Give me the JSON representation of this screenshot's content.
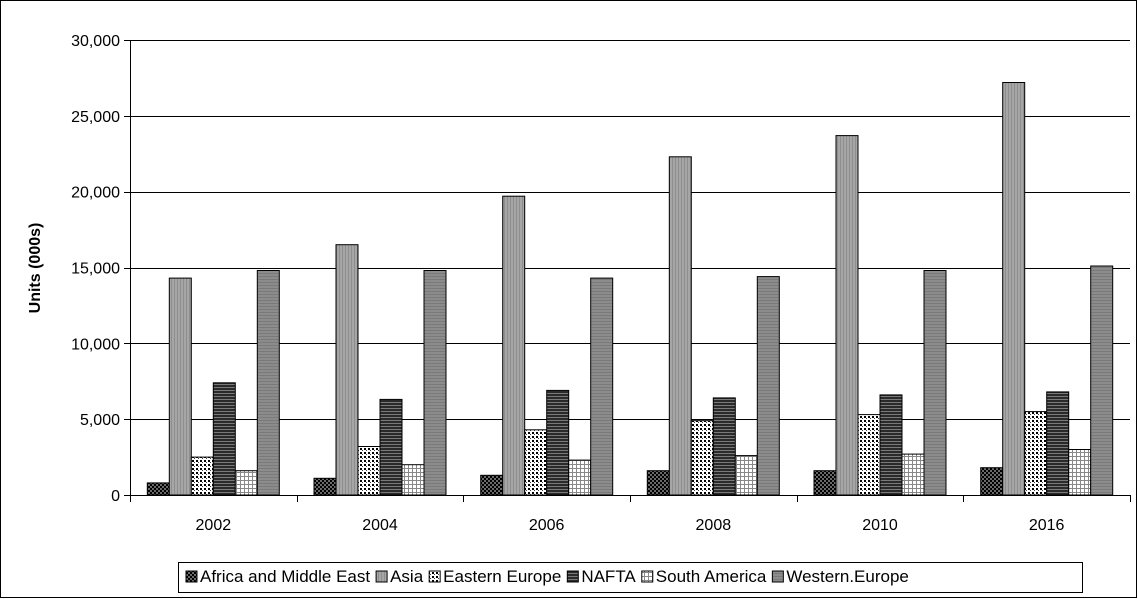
{
  "chart_data": {
    "type": "bar",
    "title": "",
    "xlabel": "",
    "ylabel": "Units (000s)",
    "ylim": [
      0,
      30000
    ],
    "yticks": [
      0,
      5000,
      10000,
      15000,
      20000,
      25000,
      30000
    ],
    "ytick_labels": [
      "0",
      "5,000",
      "10,000",
      "15,000",
      "20,000",
      "25,000",
      "30,000"
    ],
    "categories": [
      "2002",
      "2004",
      "2006",
      "2008",
      "2010",
      "2016"
    ],
    "grid": "horizontal",
    "legend_position": "bottom",
    "series": [
      {
        "name": "Africa and Middle East",
        "values": [
          800,
          1100,
          1300,
          1600,
          1600,
          1800
        ]
      },
      {
        "name": "Asia",
        "values": [
          14300,
          16500,
          19700,
          22300,
          23700,
          27200
        ]
      },
      {
        "name": "Eastern Europe",
        "values": [
          2500,
          3200,
          4300,
          4900,
          5300,
          5500
        ]
      },
      {
        "name": "NAFTA",
        "values": [
          7400,
          6300,
          6900,
          6400,
          6600,
          6800
        ]
      },
      {
        "name": "South America",
        "values": [
          1600,
          2000,
          2300,
          2600,
          2700,
          3000
        ]
      },
      {
        "name": "Western.Europe",
        "values": [
          14800,
          14800,
          14300,
          14400,
          14800,
          15100
        ]
      }
    ],
    "colors": {
      "asia": "#a6a6a6",
      "western_europe": "#8c8c8c",
      "dark": "#404040",
      "gridline": "#000000"
    }
  }
}
